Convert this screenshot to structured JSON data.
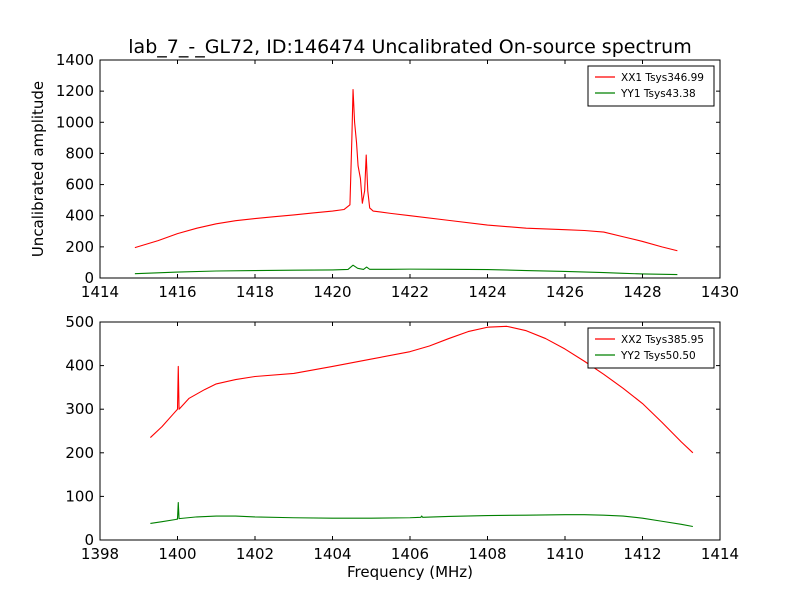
{
  "figure": {
    "title": "lab_7_-_GL72, ID:146474 Uncalibrated On-source spectrum",
    "ylabel": "Uncalibrated amplitude",
    "xlabel": "Frequency (MHz)"
  },
  "chart_data": [
    {
      "type": "line",
      "xlim": [
        1414,
        1430
      ],
      "ylim": [
        0,
        1400
      ],
      "xticks": [
        1414,
        1416,
        1418,
        1420,
        1422,
        1424,
        1426,
        1428,
        1430
      ],
      "yticks": [
        0,
        200,
        400,
        600,
        800,
        1000,
        1200,
        1400
      ],
      "legend_position": "top-right",
      "series": [
        {
          "name": "XX1 Tsys346.99",
          "color": "#ff0000",
          "points": [
            [
              1414.9,
              195
            ],
            [
              1415.5,
              240
            ],
            [
              1416,
              285
            ],
            [
              1416.5,
              320
            ],
            [
              1417,
              348
            ],
            [
              1417.5,
              368
            ],
            [
              1418,
              382
            ],
            [
              1418.5,
              394
            ],
            [
              1419,
              405
            ],
            [
              1419.5,
              418
            ],
            [
              1420,
              430
            ],
            [
              1420.3,
              440
            ],
            [
              1420.45,
              470
            ],
            [
              1420.5,
              900
            ],
            [
              1420.53,
              1210
            ],
            [
              1420.57,
              1000
            ],
            [
              1420.62,
              870
            ],
            [
              1420.66,
              720
            ],
            [
              1420.72,
              640
            ],
            [
              1420.77,
              480
            ],
            [
              1420.83,
              560
            ],
            [
              1420.87,
              790
            ],
            [
              1420.91,
              560
            ],
            [
              1420.96,
              450
            ],
            [
              1421.05,
              430
            ],
            [
              1421.5,
              415
            ],
            [
              1422,
              400
            ],
            [
              1423,
              370
            ],
            [
              1424,
              340
            ],
            [
              1425,
              320
            ],
            [
              1426,
              310
            ],
            [
              1426.5,
              305
            ],
            [
              1427,
              295
            ],
            [
              1427.5,
              265
            ],
            [
              1428,
              235
            ],
            [
              1428.5,
              200
            ],
            [
              1428.9,
              175
            ]
          ]
        },
        {
          "name": "YY1 Tsys43.38",
          "color": "#008000",
          "points": [
            [
              1414.9,
              28
            ],
            [
              1415.5,
              33
            ],
            [
              1416,
              38
            ],
            [
              1417,
              45
            ],
            [
              1418,
              48
            ],
            [
              1419,
              50
            ],
            [
              1420,
              52
            ],
            [
              1420.4,
              55
            ],
            [
              1420.53,
              82
            ],
            [
              1420.65,
              62
            ],
            [
              1420.8,
              55
            ],
            [
              1420.88,
              70
            ],
            [
              1420.96,
              56
            ],
            [
              1421.5,
              56
            ],
            [
              1422,
              57
            ],
            [
              1423,
              56
            ],
            [
              1424,
              54
            ],
            [
              1425,
              48
            ],
            [
              1426,
              42
            ],
            [
              1427,
              35
            ],
            [
              1427.5,
              30
            ],
            [
              1428,
              26
            ],
            [
              1428.9,
              22
            ]
          ]
        }
      ]
    },
    {
      "type": "line",
      "xlim": [
        1398,
        1414
      ],
      "ylim": [
        0,
        500
      ],
      "xticks": [
        1398,
        1400,
        1402,
        1404,
        1406,
        1408,
        1410,
        1412,
        1414
      ],
      "yticks": [
        0,
        100,
        200,
        300,
        400,
        500
      ],
      "legend_position": "top-right",
      "series": [
        {
          "name": "XX2 Tsys385.95",
          "color": "#ff0000",
          "points": [
            [
              1399.3,
              235
            ],
            [
              1399.6,
              260
            ],
            [
              1399.9,
              290
            ],
            [
              1400.0,
              300
            ],
            [
              1400.02,
              398
            ],
            [
              1400.04,
              300
            ],
            [
              1400.3,
              325
            ],
            [
              1400.7,
              345
            ],
            [
              1401,
              358
            ],
            [
              1401.5,
              368
            ],
            [
              1402,
              375
            ],
            [
              1403,
              382
            ],
            [
              1404,
              398
            ],
            [
              1405,
              415
            ],
            [
              1406,
              432
            ],
            [
              1406.5,
              445
            ],
            [
              1407,
              462
            ],
            [
              1407.5,
              478
            ],
            [
              1408,
              488
            ],
            [
              1408.5,
              490
            ],
            [
              1409,
              480
            ],
            [
              1409.5,
              462
            ],
            [
              1410,
              438
            ],
            [
              1410.5,
              410
            ],
            [
              1411,
              380
            ],
            [
              1411.5,
              348
            ],
            [
              1412,
              313
            ],
            [
              1412.5,
              270
            ],
            [
              1413,
              225
            ],
            [
              1413.3,
              200
            ]
          ]
        },
        {
          "name": "YY2 Tsys50.50",
          "color": "#008000",
          "points": [
            [
              1399.3,
              38
            ],
            [
              1399.6,
              42
            ],
            [
              1399.95,
              47
            ],
            [
              1400.0,
              48
            ],
            [
              1400.02,
              86
            ],
            [
              1400.04,
              49
            ],
            [
              1400.5,
              53
            ],
            [
              1401,
              55
            ],
            [
              1401.5,
              55
            ],
            [
              1402,
              53
            ],
            [
              1403,
              51
            ],
            [
              1404,
              50
            ],
            [
              1405,
              50
            ],
            [
              1406,
              51
            ],
            [
              1406.28,
              52
            ],
            [
              1406.3,
              55
            ],
            [
              1406.33,
              52
            ],
            [
              1407,
              54
            ],
            [
              1408,
              56
            ],
            [
              1409,
              57
            ],
            [
              1410,
              58
            ],
            [
              1410.5,
              58
            ],
            [
              1411,
              57
            ],
            [
              1411.5,
              55
            ],
            [
              1412,
              50
            ],
            [
              1412.5,
              43
            ],
            [
              1413,
              36
            ],
            [
              1413.3,
              31
            ]
          ]
        }
      ]
    }
  ]
}
